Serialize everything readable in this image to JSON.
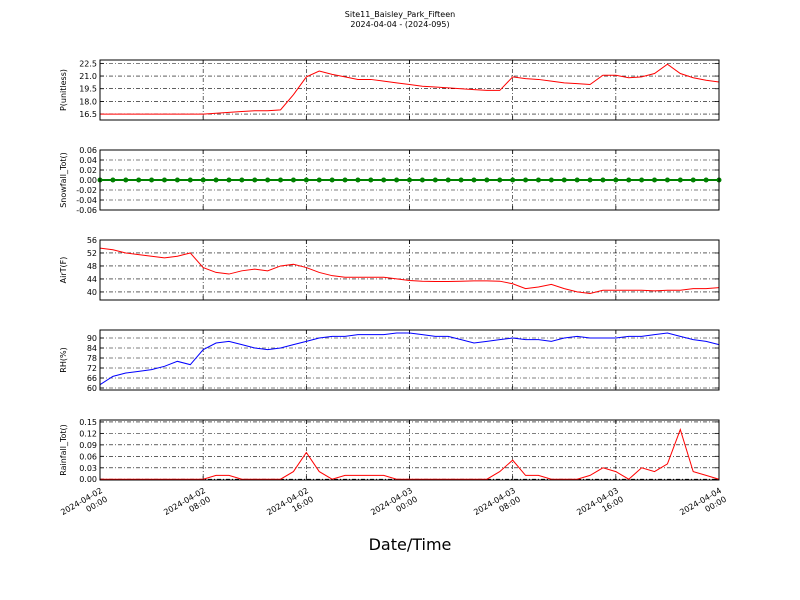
{
  "chart_data": {
    "type": "line",
    "title": "Site11_Baisley_Park_Fifteen",
    "subtitle": "2024-04-04 - (2024-095)",
    "xlabel": "Date/Time",
    "grid": true,
    "x": [
      "2024-04-02 00:00",
      "2024-04-02 01:00",
      "2024-04-02 02:00",
      "2024-04-02 03:00",
      "2024-04-02 04:00",
      "2024-04-02 05:00",
      "2024-04-02 06:00",
      "2024-04-02 07:00",
      "2024-04-02 08:00",
      "2024-04-02 09:00",
      "2024-04-02 10:00",
      "2024-04-02 11:00",
      "2024-04-02 12:00",
      "2024-04-02 13:00",
      "2024-04-02 14:00",
      "2024-04-02 15:00",
      "2024-04-02 16:00",
      "2024-04-02 17:00",
      "2024-04-02 18:00",
      "2024-04-02 19:00",
      "2024-04-02 20:00",
      "2024-04-02 21:00",
      "2024-04-02 22:00",
      "2024-04-02 23:00",
      "2024-04-03 00:00",
      "2024-04-03 01:00",
      "2024-04-03 02:00",
      "2024-04-03 03:00",
      "2024-04-03 04:00",
      "2024-04-03 05:00",
      "2024-04-03 06:00",
      "2024-04-03 07:00",
      "2024-04-03 08:00",
      "2024-04-03 09:00",
      "2024-04-03 10:00",
      "2024-04-03 11:00",
      "2024-04-03 12:00",
      "2024-04-03 13:00",
      "2024-04-03 14:00",
      "2024-04-03 15:00",
      "2024-04-03 16:00",
      "2024-04-03 17:00",
      "2024-04-03 18:00",
      "2024-04-03 19:00",
      "2024-04-03 20:00",
      "2024-04-03 21:00",
      "2024-04-03 22:00",
      "2024-04-03 23:00",
      "2024-04-04 00:00"
    ],
    "xlim": [
      "2024-04-02 00:00",
      "2024-04-04 00:00"
    ],
    "xticks": [
      {
        "value": "2024-04-02 00:00",
        "label": "2024-04-02\n00:00"
      },
      {
        "value": "2024-04-02 08:00",
        "label": "2024-04-02\n08:00"
      },
      {
        "value": "2024-04-02 16:00",
        "label": "2024-04-02\n16:00"
      },
      {
        "value": "2024-04-03 00:00",
        "label": "2024-04-03\n00:00"
      },
      {
        "value": "2024-04-03 08:00",
        "label": "2024-04-03\n08:00"
      },
      {
        "value": "2024-04-03 16:00",
        "label": "2024-04-03\n16:00"
      },
      {
        "value": "2024-04-04 00:00",
        "label": "2024-04-04\n00:00"
      }
    ],
    "panels": [
      {
        "ylabel": "P(unitless)",
        "ylim": [
          15.8,
          22.9
        ],
        "yticks": [
          16.5,
          {
            "value": 18,
            "label": "18.0"
          },
          19.5,
          {
            "value": 21,
            "label": "21.0"
          },
          22.5
        ],
        "series": [
          {
            "color": "#ff0000",
            "values": [
              16.5,
              16.5,
              16.5,
              16.5,
              16.5,
              16.5,
              16.5,
              16.5,
              16.5,
              16.6,
              16.7,
              16.8,
              16.9,
              16.9,
              17.0,
              18.8,
              20.9,
              21.6,
              21.2,
              20.9,
              20.6,
              20.6,
              20.4,
              20.2,
              20.0,
              19.8,
              19.7,
              19.6,
              19.5,
              19.4,
              19.3,
              19.3,
              20.9,
              20.7,
              20.6,
              20.4,
              20.2,
              20.1,
              20.0,
              21.1,
              21.1,
              20.8,
              20.9,
              21.3,
              22.4,
              21.3,
              20.8,
              20.5,
              20.3
            ]
          }
        ]
      },
      {
        "ylabel": "Snowfall_Tot()",
        "ylim": [
          -0.06,
          0.06
        ],
        "yticks": [
          -0.06,
          -0.04,
          -0.02,
          {
            "value": 0,
            "label": "0.00"
          },
          0.02,
          0.04,
          0.06
        ],
        "series": [
          {
            "color": "#008000",
            "marker": true,
            "values": [
              0,
              0,
              0,
              0,
              0,
              0,
              0,
              0,
              0,
              0,
              0,
              0,
              0,
              0,
              0,
              0,
              0,
              0,
              0,
              0,
              0,
              0,
              0,
              0,
              0,
              0,
              0,
              0,
              0,
              0,
              0,
              0,
              0,
              0,
              0,
              0,
              0,
              0,
              0,
              0,
              0,
              0,
              0,
              0,
              0,
              0,
              0,
              0,
              0
            ]
          }
        ]
      },
      {
        "ylabel": "AirT(F)",
        "ylim": [
          37.5,
          56
        ],
        "yticks": [
          40,
          44,
          48,
          52,
          56
        ],
        "series": [
          {
            "color": "#ff0000",
            "values": [
              53.5,
              53,
              52,
              51.5,
              51,
              50.5,
              51,
              52,
              47.5,
              46,
              45.5,
              46.5,
              47,
              46.5,
              48,
              48.5,
              47.5,
              46,
              45,
              44.5,
              44.5,
              44.5,
              44.5,
              44,
              43.5,
              43.3,
              43.2,
              43.2,
              43.3,
              43.4,
              43.4,
              43.3,
              42.5,
              41,
              41.5,
              42.3,
              41,
              40,
              39.5,
              40.5,
              40.5,
              40.5,
              40.5,
              40.3,
              40.5,
              40.5,
              41,
              41,
              41.3
            ]
          }
        ]
      },
      {
        "ylabel": "RH(%)",
        "ylim": [
          58.8,
          94.8
        ],
        "yticks": [
          60,
          66,
          72,
          78,
          84,
          90
        ],
        "series": [
          {
            "color": "#0000ff",
            "values": [
              62,
              67,
              69,
              70,
              71,
              73,
              76,
              74,
              83,
              87,
              88,
              86,
              84,
              83,
              84,
              86,
              88,
              90,
              91,
              91,
              92,
              92,
              92,
              93,
              93,
              92,
              91,
              91,
              89,
              87,
              88,
              89,
              90,
              89,
              89,
              88,
              90,
              91,
              90,
              90,
              90,
              91,
              91,
              92,
              93,
              91,
              89,
              88,
              86
            ]
          }
        ]
      },
      {
        "ylabel": "Rainfall_Tot()",
        "ylim": [
          -0.002,
          0.155
        ],
        "yticks": [
          {
            "value": 0,
            "label": "0.00"
          },
          0.03,
          0.06,
          0.09,
          0.12,
          0.15
        ],
        "series": [
          {
            "color": "#ff0000",
            "values": [
              0,
              0,
              0,
              0,
              0,
              0,
              0,
              0,
              0,
              0.01,
              0.01,
              0,
              0,
              0,
              0,
              0.02,
              0.07,
              0.02,
              0,
              0.01,
              0.01,
              0.01,
              0.01,
              0,
              0,
              0,
              0,
              0,
              0,
              0,
              0,
              0.02,
              0.05,
              0.01,
              0.01,
              0,
              0,
              0,
              0.01,
              0.03,
              0.02,
              0,
              0.03,
              0.02,
              0.04,
              0.13,
              0.02,
              0.01,
              0
            ]
          }
        ]
      }
    ]
  }
}
